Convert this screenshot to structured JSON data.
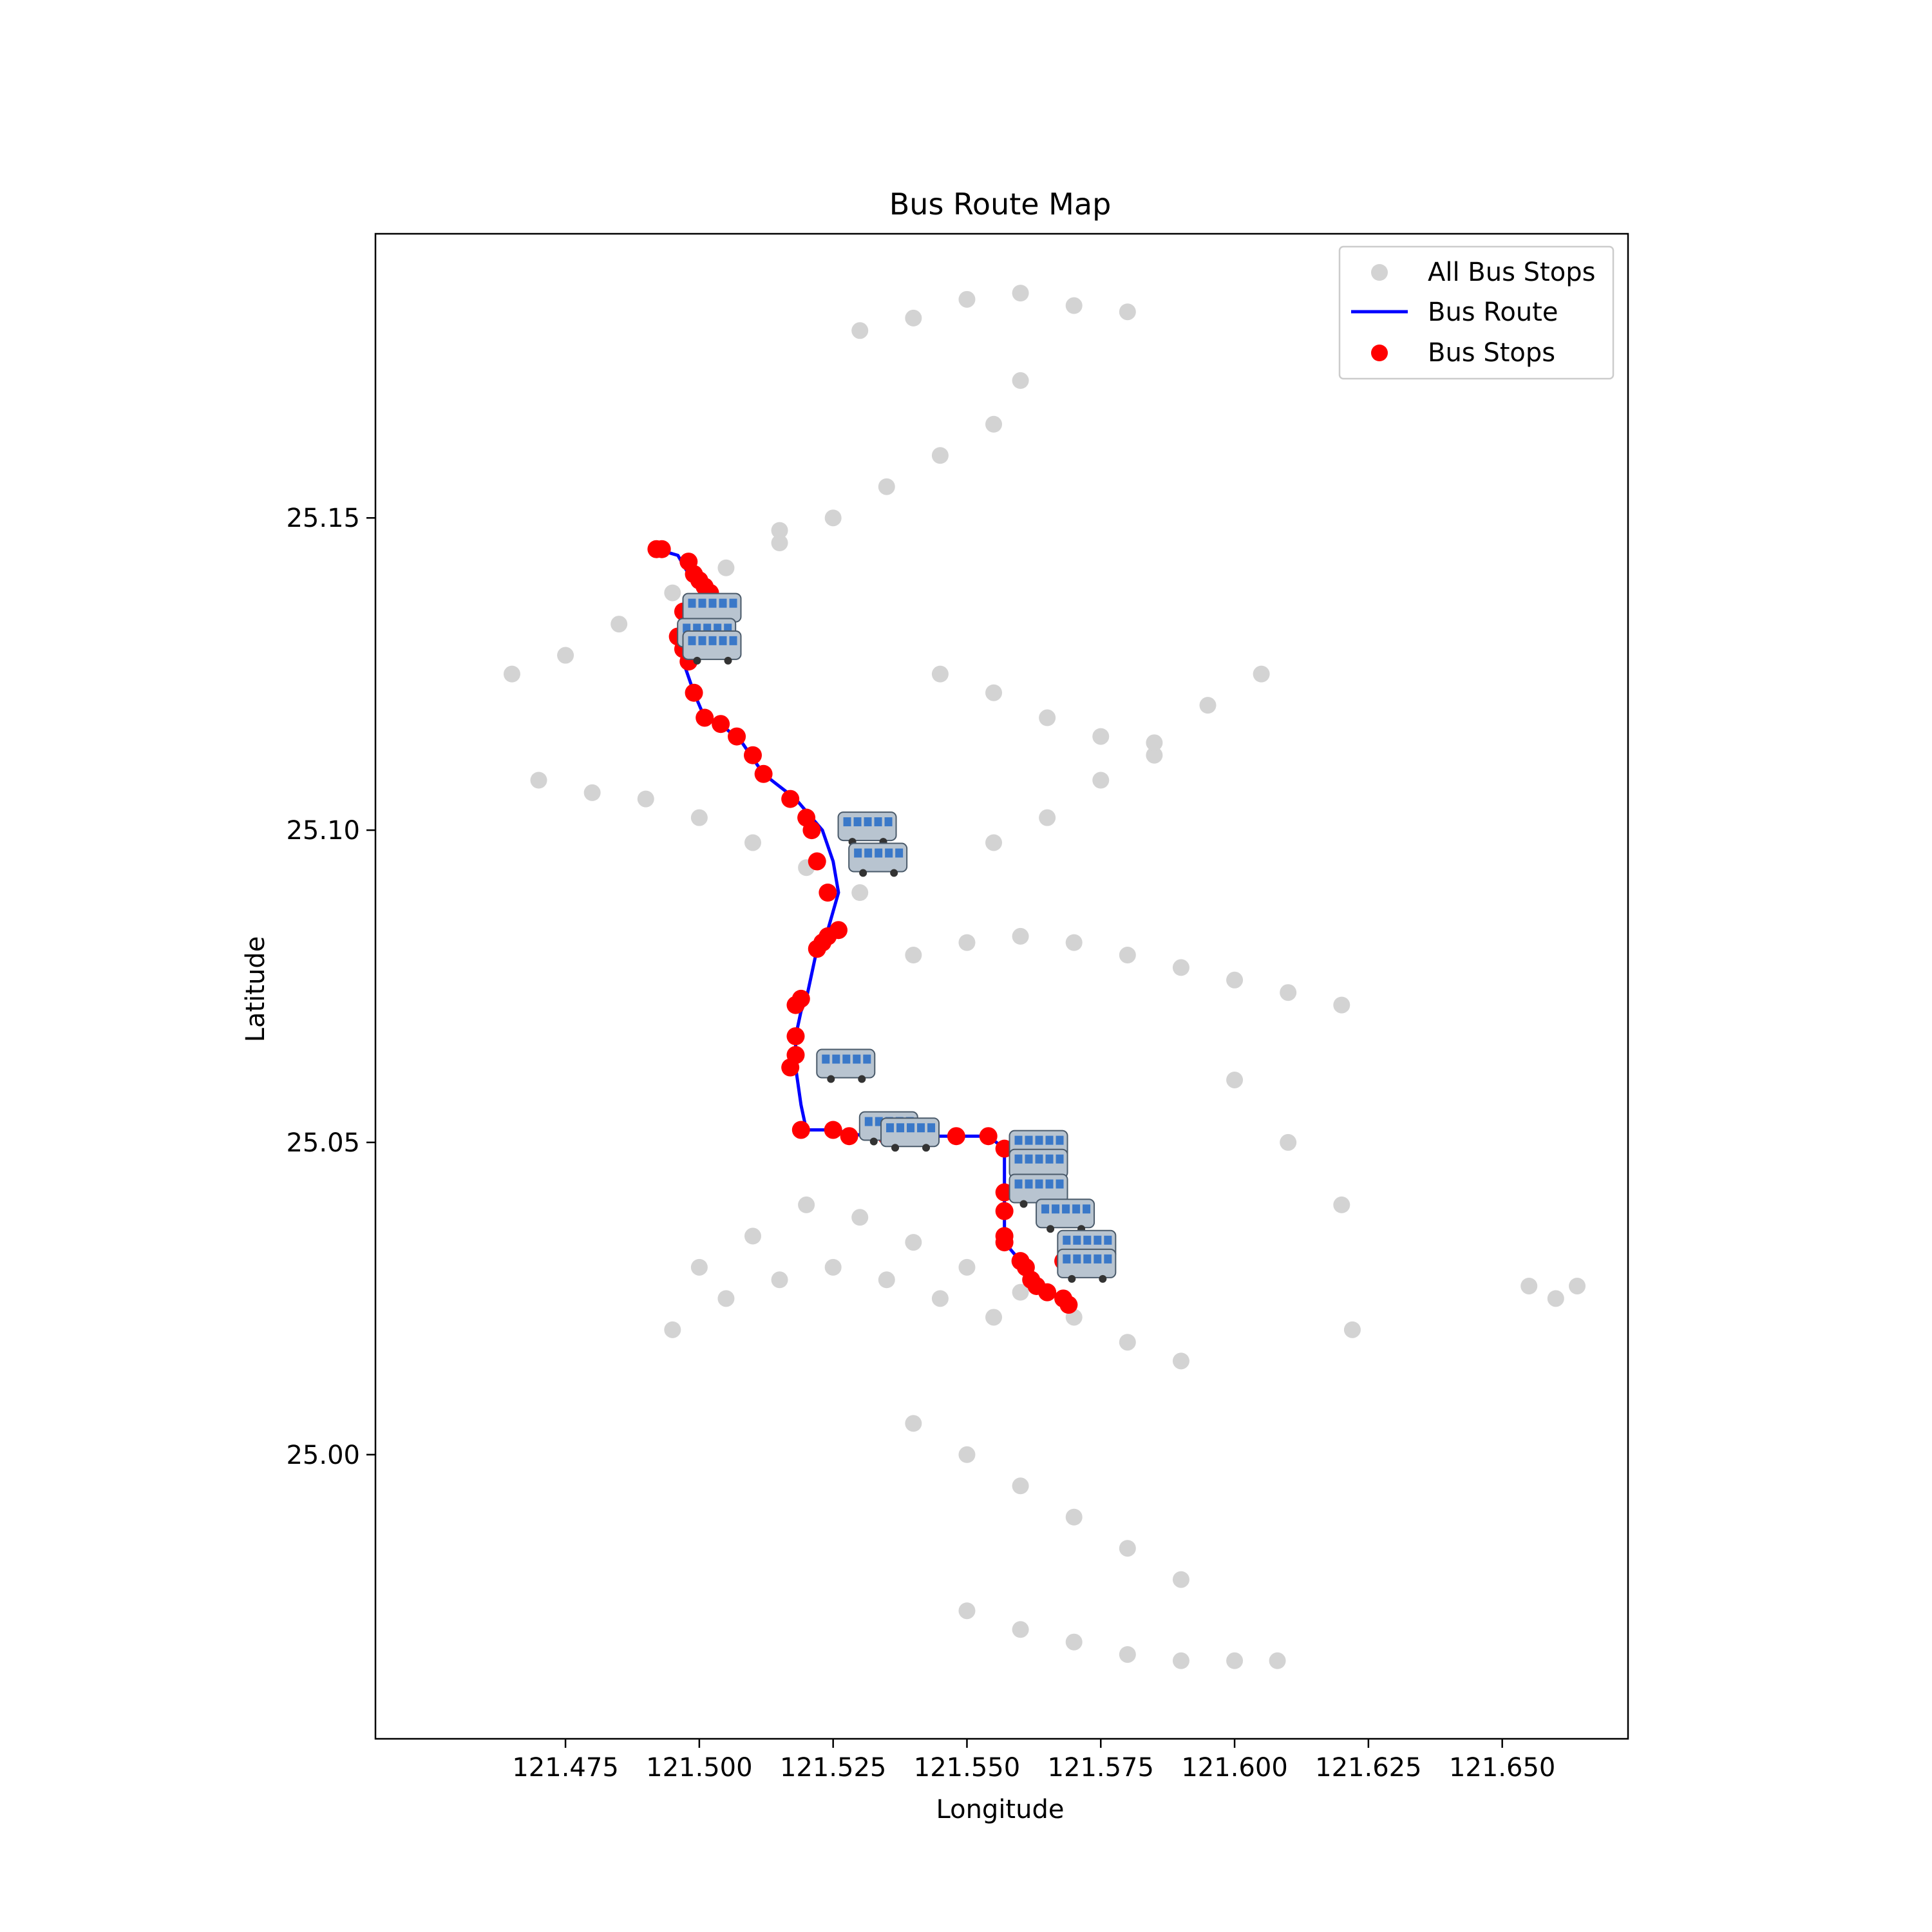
{
  "chart_data": {
    "type": "scatter",
    "title": "Bus Route Map",
    "xlabel": "Longitude",
    "ylabel": "Latitude",
    "xlim": [
      121.4395,
      121.6735
    ],
    "ylim": [
      24.9545,
      25.1955
    ],
    "x_ticks": [
      121.475,
      121.5,
      121.525,
      121.55,
      121.575,
      121.6,
      121.625,
      121.65
    ],
    "x_tick_labels": [
      "121.475",
      "121.500",
      "121.525",
      "121.550",
      "121.575",
      "121.600",
      "121.625",
      "121.650"
    ],
    "y_ticks": [
      25.0,
      25.05,
      25.1,
      25.15
    ],
    "y_tick_labels": [
      "25.00",
      "25.05",
      "25.10",
      "25.15"
    ],
    "grid": false,
    "legend": {
      "position": "top-right",
      "entries": [
        {
          "label": "All Bus Stops",
          "marker": "circle",
          "color": "#d3d3d3"
        },
        {
          "label": "Bus Route",
          "marker": "line",
          "color": "#0000ff"
        },
        {
          "label": "Bus Stops",
          "marker": "circle",
          "color": "#ff0000"
        }
      ]
    },
    "colors": {
      "all_stops": "#d3d3d3",
      "route": "#0000ff",
      "route_stops": "#ff0000"
    },
    "series": [
      {
        "name": "All Bus Stops",
        "kind": "scatter",
        "clusters": [
          {
            "x": [
              121.465,
              121.475,
              121.485,
              121.495,
              121.505,
              121.515
            ],
            "y": [
              25.125,
              25.128,
              25.133,
              25.138,
              25.142,
              25.146
            ]
          },
          {
            "x": [
              121.47,
              121.48,
              121.49,
              121.5,
              121.51,
              121.52,
              121.53
            ],
            "y": [
              25.108,
              25.106,
              25.105,
              25.102,
              25.098,
              25.094,
              25.09
            ]
          },
          {
            "x": [
              121.515,
              121.525,
              121.535,
              121.545,
              121.555,
              121.56
            ],
            "y": [
              25.148,
              25.15,
              25.155,
              25.16,
              25.165,
              25.172
            ]
          },
          {
            "x": [
              121.53,
              121.54,
              121.55,
              121.56,
              121.57,
              121.58
            ],
            "y": [
              25.18,
              25.182,
              25.185,
              25.186,
              25.184,
              25.183
            ]
          },
          {
            "x": [
              121.545,
              121.555,
              121.565,
              121.575,
              121.585
            ],
            "y": [
              25.125,
              25.122,
              25.118,
              25.115,
              25.112
            ]
          },
          {
            "x": [
              121.555,
              121.565,
              121.575,
              121.585,
              121.595,
              121.605
            ],
            "y": [
              25.098,
              25.102,
              25.108,
              25.114,
              25.12,
              25.125
            ]
          },
          {
            "x": [
              121.54,
              121.55,
              121.56,
              121.57,
              121.58,
              121.59,
              121.6,
              121.61,
              121.62
            ],
            "y": [
              25.08,
              25.082,
              25.083,
              25.082,
              25.08,
              25.078,
              25.076,
              25.074,
              25.072
            ]
          },
          {
            "x": [
              121.5,
              121.51,
              121.52,
              121.53,
              121.54,
              121.55,
              121.56,
              121.57,
              121.58,
              121.59
            ],
            "y": [
              25.03,
              25.035,
              25.04,
              25.038,
              25.034,
              25.03,
              25.026,
              25.022,
              25.018,
              25.015
            ]
          },
          {
            "x": [
              121.495,
              121.505,
              121.515,
              121.525,
              121.535,
              121.545,
              121.555
            ],
            "y": [
              25.02,
              25.025,
              25.028,
              25.03,
              25.028,
              25.025,
              25.022
            ]
          },
          {
            "x": [
              121.54,
              121.55,
              121.56,
              121.57,
              121.58,
              121.59
            ],
            "y": [
              25.005,
              25.0,
              24.995,
              24.99,
              24.985,
              24.98
            ]
          },
          {
            "x": [
              121.55,
              121.56,
              121.57,
              121.58,
              121.59,
              121.6,
              121.608
            ],
            "y": [
              24.975,
              24.972,
              24.97,
              24.968,
              24.967,
              24.967,
              24.967
            ]
          },
          {
            "x": [
              121.6,
              121.61,
              121.62,
              121.622
            ],
            "y": [
              25.06,
              25.05,
              25.04,
              25.02
            ]
          },
          {
            "x": [
              121.655,
              121.66,
              121.664
            ],
            "y": [
              25.027,
              25.025,
              25.027
            ]
          }
        ]
      },
      {
        "name": "Bus Route",
        "kind": "line",
        "x": [
          121.492,
          121.496,
          121.498,
          121.5,
          121.502,
          121.503,
          121.497,
          121.496,
          121.497,
          121.499,
          121.501,
          121.504,
          121.508,
          121.512,
          121.518,
          121.521,
          121.523,
          121.525,
          121.526,
          121.524,
          121.522,
          121.52,
          121.519,
          121.518,
          121.518,
          121.519,
          121.52,
          121.525,
          121.531,
          121.54,
          121.548,
          121.554,
          121.557,
          121.557,
          121.557,
          121.557,
          121.56,
          121.562,
          121.565,
          121.568,
          121.569
        ],
        "y": [
          25.145,
          25.144,
          25.141,
          25.139,
          25.137,
          25.135,
          25.135,
          25.13,
          25.127,
          25.122,
          25.118,
          25.117,
          25.114,
          25.109,
          25.105,
          25.102,
          25.1,
          25.095,
          25.09,
          25.084,
          25.081,
          25.073,
          25.071,
          25.067,
          25.062,
          25.056,
          25.052,
          25.052,
          25.051,
          25.051,
          25.051,
          25.051,
          25.049,
          25.042,
          25.039,
          25.034,
          25.031,
          25.028,
          25.026,
          25.025,
          25.024
        ]
      },
      {
        "name": "Bus Stops",
        "kind": "scatter",
        "x": [
          121.492,
          121.493,
          121.498,
          121.499,
          121.5,
          121.501,
          121.502,
          121.503,
          121.497,
          121.496,
          121.497,
          121.498,
          121.499,
          121.501,
          121.504,
          121.507,
          121.51,
          121.512,
          121.517,
          121.52,
          121.521,
          121.522,
          121.524,
          121.526,
          121.524,
          121.523,
          121.522,
          121.519,
          121.518,
          121.518,
          121.518,
          121.517,
          121.519,
          121.525,
          121.528,
          121.535,
          121.54,
          121.548,
          121.554,
          121.557,
          121.557,
          121.557,
          121.557,
          121.557,
          121.56,
          121.561,
          121.562,
          121.563,
          121.565,
          121.568,
          121.569,
          121.568
        ],
        "y": [
          25.145,
          25.145,
          25.143,
          25.141,
          25.14,
          25.139,
          25.138,
          25.136,
          25.135,
          25.131,
          25.129,
          25.127,
          25.122,
          25.118,
          25.117,
          25.115,
          25.112,
          25.109,
          25.105,
          25.102,
          25.1,
          25.095,
          25.09,
          25.084,
          25.083,
          25.082,
          25.081,
          25.073,
          25.072,
          25.067,
          25.064,
          25.062,
          25.052,
          25.052,
          25.051,
          25.051,
          25.051,
          25.051,
          25.051,
          25.049,
          25.042,
          25.039,
          25.035,
          25.034,
          25.031,
          25.03,
          25.028,
          25.027,
          25.026,
          25.025,
          25.024,
          25.031
        ]
      }
    ],
    "bus_icons": {
      "count": 14,
      "x": [
        121.502,
        121.501,
        121.502,
        121.531,
        121.533,
        121.527,
        121.535,
        121.539,
        121.563,
        121.563,
        121.563,
        121.568,
        121.572,
        121.572
      ],
      "y": [
        25.135,
        25.131,
        25.129,
        25.1,
        25.095,
        25.062,
        25.052,
        25.051,
        25.049,
        25.046,
        25.042,
        25.038,
        25.033,
        25.03
      ]
    }
  }
}
